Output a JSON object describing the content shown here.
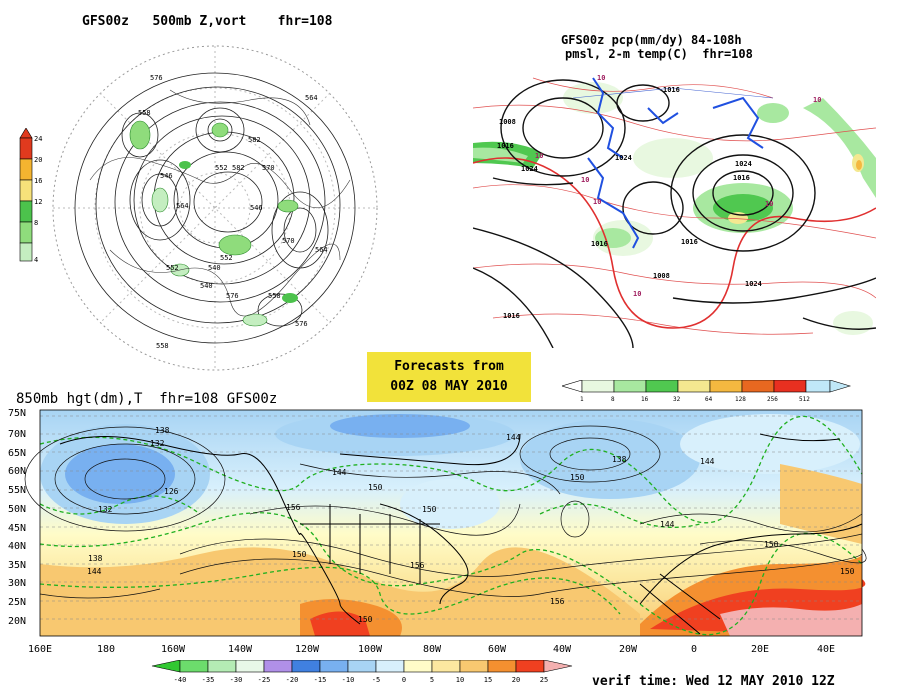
{
  "panel_500mb": {
    "title": "GFS00z   500mb Z,vort    fhr=108",
    "contour_labels": [
      "576",
      "564",
      "552",
      "540",
      "558",
      "546",
      "570",
      "564",
      "552",
      "540",
      "576",
      "558",
      "582",
      "570",
      "564",
      "552",
      "546",
      "558",
      "576",
      "582"
    ],
    "legend": {
      "values": [
        "24",
        "20",
        "16",
        "12",
        "8",
        "4"
      ],
      "colors": [
        "#e03a1e",
        "#f4b430",
        "#f7e27a",
        "#4cc24c",
        "#8fdc7c",
        "#c4eec0"
      ]
    }
  },
  "panel_pcp": {
    "title_line1": "GFS00z pcp(mm/dy) 84-108h",
    "title_line2": "pmsl, 2-m temp(C)  fhr=108",
    "pressure_labels": [
      "1008",
      "1016",
      "1024",
      "1024",
      "1016",
      "1016",
      "1008",
      "1016",
      "1024",
      "1016",
      "1016",
      "1024"
    ],
    "temp_labels": [
      "10",
      "10",
      "10",
      "10",
      "10",
      "10",
      "10"
    ],
    "legend": {
      "values": [
        "1",
        "8",
        "16",
        "32",
        "64",
        "128",
        "256",
        "512"
      ],
      "colors": [
        "#e8f8e0",
        "#a8e8a0",
        "#50c850",
        "#f4e890",
        "#f4b840",
        "#e86820",
        "#e83020",
        "#c0e8f8"
      ]
    }
  },
  "forecast_box": {
    "line1": "Forecasts from",
    "line2": "00Z 08 MAY 2010"
  },
  "panel_850mb": {
    "title": "850mb hgt(dm),T  fhr=108 GFS00z",
    "lat_labels": [
      "75N",
      "70N",
      "65N",
      "60N",
      "55N",
      "50N",
      "45N",
      "40N",
      "35N",
      "30N",
      "25N",
      "20N"
    ],
    "lon_labels": [
      "160E",
      "180",
      "160W",
      "140W",
      "120W",
      "100W",
      "80W",
      "60W",
      "40W",
      "20W",
      "0",
      "20E",
      "40E"
    ],
    "height_labels": [
      "138",
      "132",
      "126",
      "132",
      "144",
      "150",
      "156",
      "144",
      "150",
      "150",
      "144",
      "156",
      "150",
      "138",
      "144",
      "150",
      "138",
      "144",
      "150",
      "150",
      "156"
    ],
    "legend": {
      "values": [
        "-40",
        "-35",
        "-30",
        "-25",
        "-20",
        "-15",
        "-10",
        "-5",
        "0",
        "5",
        "10",
        "15",
        "20",
        "25"
      ],
      "colors": [
        "#32c832",
        "#6cdc6c",
        "#b4ecb4",
        "#e8f8e8",
        "#b090e8",
        "#4080e0",
        "#78b0f0",
        "#a8d4f4",
        "#d8f0fc",
        "#fffcc8",
        "#fce8a0",
        "#f8c870",
        "#f49030",
        "#f04020",
        "#f4b0b0"
      ]
    }
  },
  "verif_time": "verif time: Wed 12 MAY 2010 12Z"
}
